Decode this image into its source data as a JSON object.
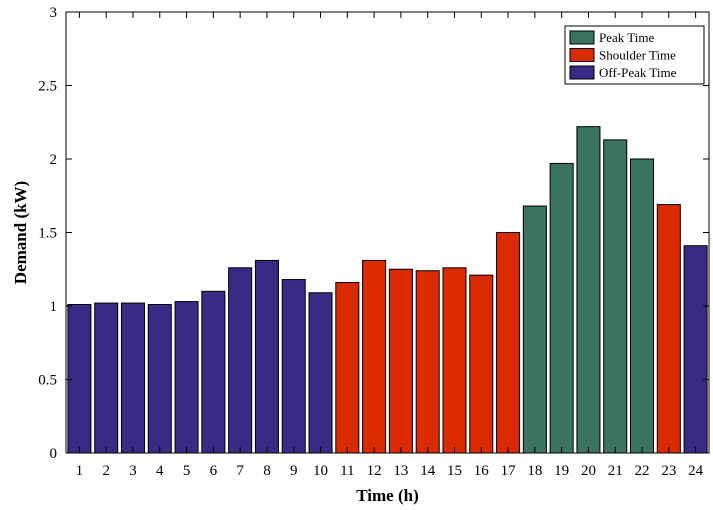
{
  "chart_data": {
    "type": "bar",
    "xlabel": "Time (h)",
    "ylabel": "Demand (kW)",
    "ylim": [
      0,
      3
    ],
    "yticks": [
      "0",
      "0.5",
      "1",
      "1.5",
      "2",
      "2.5",
      "3"
    ],
    "categories": [
      "1",
      "2",
      "3",
      "4",
      "5",
      "6",
      "7",
      "8",
      "9",
      "10",
      "11",
      "12",
      "13",
      "14",
      "15",
      "16",
      "17",
      "18",
      "19",
      "20",
      "21",
      "22",
      "23",
      "24"
    ],
    "values": [
      1.01,
      1.02,
      1.02,
      1.01,
      1.03,
      1.1,
      1.26,
      1.31,
      1.18,
      1.09,
      1.16,
      1.31,
      1.25,
      1.24,
      1.26,
      1.21,
      1.5,
      1.68,
      1.97,
      2.22,
      2.13,
      2.0,
      1.69,
      1.41
    ],
    "period": [
      "off",
      "off",
      "off",
      "off",
      "off",
      "off",
      "off",
      "off",
      "off",
      "off",
      "shoulder",
      "shoulder",
      "shoulder",
      "shoulder",
      "shoulder",
      "shoulder",
      "shoulder",
      "peak",
      "peak",
      "peak",
      "peak",
      "peak",
      "shoulder",
      "off"
    ],
    "legend": {
      "position": "top-right",
      "entries": [
        {
          "key": "peak",
          "label": "Peak Time",
          "color": "#3b7360"
        },
        {
          "key": "shoulder",
          "label": "Shoulder Time",
          "color": "#d92a00"
        },
        {
          "key": "off",
          "label": "Off-Peak Time",
          "color": "#392b85"
        }
      ]
    },
    "grid": false
  }
}
